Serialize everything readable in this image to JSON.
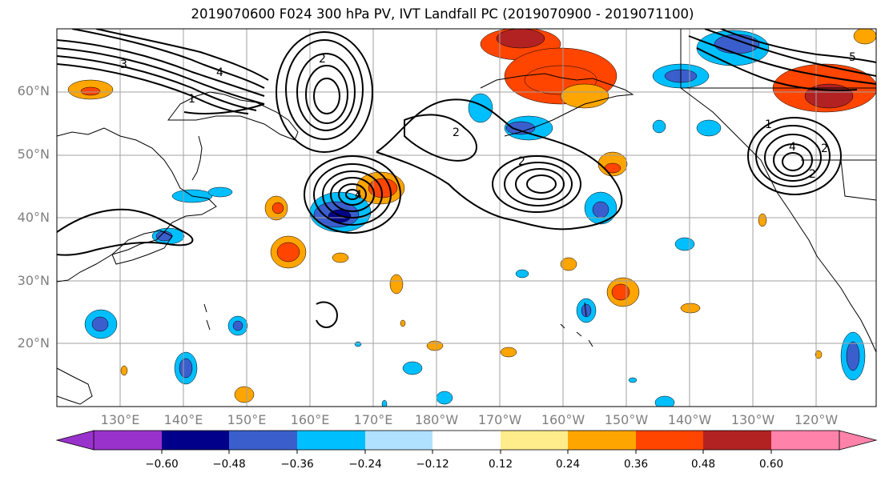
{
  "title": "2019070600 F024 300 hPa PV, IVT Landfall PC (2019070900 - 2019071100)",
  "lat_labels": [
    "60°N",
    "50°N",
    "40°N",
    "30°N",
    "20°N"
  ],
  "lon_labels": [
    "130°E",
    "140°E",
    "150°E",
    "160°E",
    "170°E",
    "180°W",
    "170°W",
    "160°W",
    "150°W",
    "140°W",
    "130°W",
    "120°W"
  ],
  "colorbar": {
    "tick_labels": [
      "−0.60",
      "−0.48",
      "−0.36",
      "−0.24",
      "−0.12",
      "0.12",
      "0.24",
      "0.36",
      "0.48",
      "0.60"
    ],
    "colors": [
      "#9932cc",
      "#00008b",
      "#3a5fcd",
      "#00bfff",
      "#b0e2ff",
      "#ffffff",
      "#ffec8b",
      "#ffa500",
      "#ff4500",
      "#b22222",
      "#ff82ab"
    ]
  },
  "contour_labels": [
    "4",
    "3",
    "2",
    "1",
    "2",
    "2",
    "1",
    "2",
    "4",
    "4",
    "5",
    "2"
  ]
}
